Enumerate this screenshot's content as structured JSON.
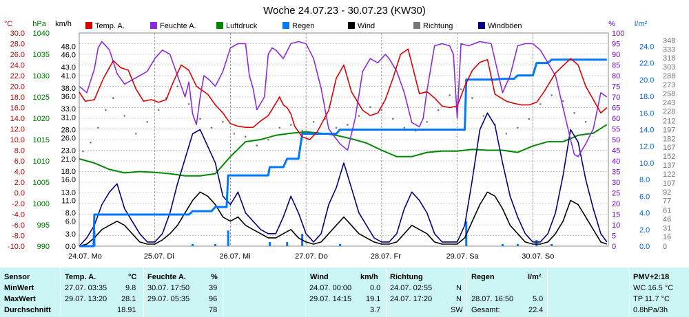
{
  "chart_data": {
    "type": "line",
    "title": "Woche 24.07.23 - 30.07.23 (KW30)",
    "axis_units": {
      "temp": "°C",
      "hpa": "hPa",
      "kmh": "km/h",
      "pct": "%",
      "lm2": "l/m²"
    },
    "axes": {
      "temp": {
        "min": -10,
        "max": 30,
        "ticks": [
          "30.0",
          "28.0",
          "26.0",
          "24.0",
          "22.0",
          "20.0",
          "18.0",
          "16.0",
          "14.0",
          "12.0",
          "10.0",
          "8.0",
          "6.0",
          "4.0",
          "2.0",
          "0.0",
          "-2.0",
          "-4.0",
          "-6.0",
          "-8.0",
          "-10.0"
        ],
        "color": "#cc0000"
      },
      "hpa": {
        "min": 990,
        "max": 1040,
        "ticks": [
          "1040",
          "1035",
          "1030",
          "1025",
          "1020",
          "1015",
          "1010",
          "1005",
          "1000",
          "995",
          "990"
        ],
        "color": "#007700"
      },
      "kmh": {
        "ticks": [
          {
            "v": 0,
            "l": "0.0"
          },
          {
            "v": 3,
            "l": "3.0"
          },
          {
            "v": 6,
            "l": "6.0"
          },
          {
            "v": 8,
            "l": "8.0"
          },
          {
            "v": 11,
            "l": "11.0"
          },
          {
            "v": 13,
            "l": "13.0"
          },
          {
            "v": 16,
            "l": "16.0"
          },
          {
            "v": 18,
            "l": "18.0"
          },
          {
            "v": 21,
            "l": "21.0"
          },
          {
            "v": 23,
            "l": "23.0"
          },
          {
            "v": 26,
            "l": "26.0"
          },
          {
            "v": 28,
            "l": "28.0"
          },
          {
            "v": 31,
            "l": "31.0"
          },
          {
            "v": 33,
            "l": "33.0"
          },
          {
            "v": 36,
            "l": "36.0"
          },
          {
            "v": 38,
            "l": "38.0"
          },
          {
            "v": 41,
            "l": "41.0"
          },
          {
            "v": 43,
            "l": "43.0"
          },
          {
            "v": 46,
            "l": "46.0"
          },
          {
            "v": 48,
            "l": "48.0"
          }
        ],
        "max": 51.2,
        "color": "#000000"
      },
      "pct": {
        "min": 0,
        "max": 100,
        "ticks": [
          "100",
          "95",
          "90",
          "85",
          "80",
          "75",
          "70",
          "65",
          "60",
          "55",
          "50",
          "45",
          "40",
          "35",
          "30",
          "25",
          "20",
          "15",
          "10",
          "5",
          "0"
        ],
        "color": "#7700cc"
      },
      "lm2": {
        "min": 0,
        "max": 25.6,
        "ticks": [
          "24.0",
          "22.0",
          "20.0",
          "18.0",
          "16.0",
          "14.0",
          "12.0",
          "10.0",
          "8.0",
          "6.0",
          "4.0",
          "2.0",
          "0.0"
        ],
        "color": "#0066cc"
      },
      "dir": {
        "max": 360,
        "ticks": [
          "348",
          "333",
          "318",
          "303",
          "288",
          "273",
          "258",
          "243",
          "228",
          "212",
          "197",
          "182",
          "167",
          "152",
          "137",
          "122",
          "107",
          "92",
          "77",
          "61",
          "46",
          "31",
          "16",
          "0"
        ],
        "color": "#777777"
      }
    },
    "x_labels": [
      "24.07. Mo",
      "25.07. Di",
      "26.07. Mi",
      "27.07. Do",
      "28.07. Fr",
      "29.07. Sa",
      "30.07. So"
    ],
    "x_range_days": [
      0,
      7
    ],
    "legend": [
      "Temp. A.",
      "Feuchte A.",
      "Luftdruck",
      "Regen",
      "Wind",
      "Richtung",
      "Windböen"
    ],
    "series": [
      {
        "name": "Temp. A.",
        "unit": "°C",
        "color": "#dd0000",
        "x": [
          0,
          0.08,
          0.2,
          0.32,
          0.45,
          0.55,
          0.65,
          0.75,
          0.85,
          0.95,
          1.05,
          1.15,
          1.25,
          1.35,
          1.45,
          1.55,
          1.7,
          1.8,
          1.9,
          2.0,
          2.1,
          2.2,
          2.3,
          2.4,
          2.5,
          2.6,
          2.65,
          2.7,
          2.75,
          2.8,
          2.85,
          2.95,
          3.05,
          3.15,
          3.3,
          3.4,
          3.5,
          3.6,
          3.75,
          3.85,
          3.95,
          4.05,
          4.15,
          4.25,
          4.35,
          4.5,
          4.6,
          4.7,
          4.8,
          4.9,
          5.0,
          5.1,
          5.2,
          5.3,
          5.4,
          5.5,
          5.65,
          5.75,
          5.85,
          5.95,
          6.05,
          6.15,
          6.3,
          6.5,
          6.6,
          6.7,
          6.8,
          6.9,
          6.98
        ],
        "y": [
          18.9,
          17.2,
          17.5,
          21.5,
          24.8,
          23.5,
          23.0,
          19.5,
          17.2,
          17.5,
          17.0,
          17.5,
          21.0,
          24.0,
          23.0,
          20.0,
          18.5,
          16.5,
          15.0,
          13.0,
          12.5,
          12.3,
          12.3,
          13.5,
          14.5,
          16.8,
          18.0,
          16.5,
          16.0,
          14.8,
          12.5,
          10.5,
          10.0,
          11.5,
          15.5,
          21.5,
          24.0,
          19.0,
          15.5,
          14.5,
          15.0,
          17.5,
          21.5,
          26.0,
          27.0,
          18.6,
          19.0,
          17.8,
          16.3,
          16.0,
          16.3,
          20.0,
          23.0,
          24.5,
          25.0,
          18.5,
          17.2,
          16.8,
          16.5,
          16.5,
          17.0,
          19.0,
          22.5,
          25.2,
          24.0,
          20.0,
          17.5,
          15.0,
          16.0
        ]
      },
      {
        "name": "Feuchte A.",
        "unit": "%",
        "color": "#8a2be2",
        "x": [
          0,
          0.1,
          0.2,
          0.25,
          0.3,
          0.4,
          0.5,
          0.6,
          0.7,
          0.8,
          0.9,
          1.0,
          1.1,
          1.2,
          1.3,
          1.4,
          1.45,
          1.5,
          1.55,
          1.6,
          1.65,
          1.72,
          1.8,
          1.9,
          2.0,
          2.1,
          2.2,
          2.25,
          2.3,
          2.35,
          2.45,
          2.5,
          2.55,
          2.6,
          2.7,
          2.8,
          2.9,
          3.0,
          3.1,
          3.2,
          3.3,
          3.45,
          3.55,
          3.65,
          3.75,
          3.85,
          3.95,
          4.05,
          4.1,
          4.2,
          4.3,
          4.4,
          4.5,
          4.55,
          4.6,
          4.7,
          4.8,
          4.9,
          4.95,
          5.0,
          5.05,
          5.15,
          5.3,
          5.45,
          5.6,
          5.7,
          5.8,
          5.9,
          6.0,
          6.1,
          6.3,
          6.5,
          6.55,
          6.6,
          6.7,
          6.8,
          6.9,
          6.98
        ],
        "y": [
          75,
          72,
          83,
          93,
          96,
          92,
          81,
          76,
          78,
          80,
          82,
          88,
          92,
          90,
          80,
          70,
          77,
          62,
          57,
          70,
          80,
          78,
          75,
          82,
          93,
          95,
          95,
          80,
          74,
          64,
          70,
          90,
          93,
          92,
          88,
          95,
          96,
          95,
          88,
          74,
          55,
          48,
          45,
          60,
          82,
          88,
          86,
          90,
          88,
          82,
          72,
          58,
          56,
          60,
          73,
          94,
          95,
          94,
          90,
          60,
          95,
          94,
          96,
          95,
          72,
          80,
          94,
          95,
          95,
          92,
          80,
          50,
          43,
          42,
          48,
          55,
          72,
          70
        ]
      },
      {
        "name": "Luftdruck",
        "unit": "hPa",
        "color": "#008800",
        "x": [
          0,
          0.2,
          0.4,
          0.6,
          0.8,
          1.0,
          1.2,
          1.4,
          1.6,
          1.8,
          2.0,
          2.2,
          2.4,
          2.6,
          2.8,
          3.0,
          3.2,
          3.4,
          3.6,
          3.8,
          4.0,
          4.2,
          4.4,
          4.6,
          4.8,
          5.0,
          5.2,
          5.4,
          5.6,
          5.8,
          6.0,
          6.2,
          6.4,
          6.6,
          6.8,
          6.98
        ],
        "y": [
          1010.5,
          1009.5,
          1008,
          1007.2,
          1007.5,
          1007.3,
          1007,
          1006.5,
          1006.5,
          1007,
          1011,
          1014.5,
          1015,
          1016,
          1016.5,
          1016.8,
          1016.5,
          1016,
          1015.2,
          1014.2,
          1012.5,
          1011,
          1011,
          1012,
          1012.3,
          1012.3,
          1012.7,
          1012.5,
          1012.5,
          1012,
          1013.5,
          1014.5,
          1014.5,
          1016,
          1016.5,
          1018.5
        ]
      },
      {
        "name": "Regen",
        "unit": "l/m²",
        "color": "#0077ff",
        "x": [
          0,
          0.19,
          0.2,
          1.45,
          1.5,
          1.75,
          1.8,
          1.95,
          1.97,
          2.5,
          2.52,
          2.7,
          2.75,
          2.9,
          2.95,
          3.4,
          3.45,
          5.1,
          5.12,
          5.5,
          5.6,
          5.75,
          5.8,
          6.0,
          6.05,
          6.2,
          6.25,
          6.98
        ],
        "y": [
          0,
          0,
          3.8,
          3.8,
          4.2,
          4.2,
          4.7,
          4.7,
          8.5,
          8.5,
          9.5,
          9.5,
          10.5,
          10.5,
          13.5,
          13.5,
          14.0,
          14.0,
          20.0,
          20.0,
          20.1,
          20.1,
          20.5,
          20.5,
          22.0,
          22.0,
          22.4,
          22.4
        ]
      },
      {
        "name": "Wind",
        "unit": "km/h",
        "color": "#000000",
        "x": [
          0,
          0.1,
          0.2,
          0.3,
          0.4,
          0.5,
          0.6,
          0.7,
          0.8,
          0.9,
          1.0,
          1.1,
          1.2,
          1.3,
          1.4,
          1.5,
          1.6,
          1.7,
          1.8,
          1.9,
          2.0,
          2.1,
          2.2,
          2.3,
          2.4,
          2.5,
          2.6,
          2.7,
          2.8,
          2.9,
          3.0,
          3.1,
          3.2,
          3.3,
          3.4,
          3.5,
          3.6,
          3.7,
          3.8,
          3.9,
          4.0,
          4.1,
          4.2,
          4.3,
          4.4,
          4.5,
          4.6,
          4.7,
          4.8,
          4.9,
          5.0,
          5.1,
          5.2,
          5.3,
          5.4,
          5.5,
          5.6,
          5.7,
          5.8,
          5.9,
          6.0,
          6.1,
          6.2,
          6.3,
          6.4,
          6.5,
          6.6,
          6.7,
          6.8,
          6.9,
          6.98
        ],
        "y": [
          0,
          0.5,
          2,
          4,
          5,
          6,
          5,
          3,
          1,
          0.5,
          0.5,
          1.5,
          3,
          5,
          8,
          11,
          13,
          12,
          10,
          7,
          6,
          7,
          5,
          4,
          3,
          2,
          2,
          3,
          4,
          2,
          1,
          0.5,
          1,
          3,
          5,
          7,
          5,
          3,
          2,
          1,
          0.5,
          0.5,
          1,
          3,
          5,
          4,
          3,
          1,
          0.5,
          0.5,
          0.5,
          2,
          6,
          10,
          13,
          12,
          9,
          5,
          3,
          1,
          0.5,
          0.5,
          1,
          3,
          6,
          11,
          10,
          7,
          4,
          1,
          0.5
        ]
      },
      {
        "name": "Windböen",
        "unit": "km/h",
        "color": "#000080",
        "x": [
          0,
          0.1,
          0.2,
          0.3,
          0.4,
          0.5,
          0.6,
          0.7,
          0.8,
          0.9,
          1.0,
          1.1,
          1.2,
          1.3,
          1.4,
          1.5,
          1.6,
          1.7,
          1.8,
          1.9,
          2.0,
          2.1,
          2.2,
          2.3,
          2.4,
          2.5,
          2.6,
          2.7,
          2.8,
          2.9,
          3.0,
          3.1,
          3.2,
          3.3,
          3.4,
          3.5,
          3.6,
          3.7,
          3.8,
          3.9,
          4.0,
          4.1,
          4.2,
          4.3,
          4.4,
          4.5,
          4.6,
          4.7,
          4.8,
          4.9,
          5.0,
          5.1,
          5.2,
          5.3,
          5.4,
          5.5,
          5.6,
          5.7,
          5.8,
          5.9,
          6.0,
          6.1,
          6.2,
          6.3,
          6.4,
          6.5,
          6.6,
          6.7,
          6.8,
          6.9,
          6.98
        ],
        "y": [
          0,
          2,
          5,
          10,
          13,
          15,
          9,
          6,
          3,
          1,
          1,
          3,
          8,
          15,
          21,
          27,
          28,
          24,
          20,
          12,
          10,
          13,
          8,
          6,
          4,
          3,
          3,
          7,
          12,
          8,
          3,
          1,
          3,
          10,
          14,
          20,
          14,
          8,
          5,
          2,
          1,
          1,
          3,
          9,
          13,
          11,
          8,
          3,
          1,
          1,
          1,
          5,
          16,
          28,
          32,
          29,
          20,
          12,
          7,
          3,
          1,
          1,
          3,
          8,
          17,
          28,
          25,
          16,
          9,
          3,
          1
        ]
      },
      {
        "name": "Richtung",
        "unit": "°",
        "color": "#777777",
        "type": "scatter",
        "x": [
          0.05,
          0.15,
          0.25,
          0.35,
          0.45,
          0.6,
          0.75,
          0.9,
          1.05,
          1.15,
          1.3,
          1.45,
          1.6,
          1.75,
          1.9,
          2.05,
          2.2,
          2.35,
          2.5,
          2.65,
          2.8,
          2.95,
          3.1,
          3.25,
          3.4,
          3.55,
          3.7,
          3.85,
          4.0,
          4.15,
          4.3,
          4.45,
          4.6,
          4.75,
          4.9,
          5.05,
          5.2,
          5.35,
          5.5,
          5.65,
          5.8,
          5.95,
          6.1,
          6.25,
          6.4,
          6.55,
          6.7,
          6.85
        ],
        "y": [
          160,
          175,
          200,
          230,
          250,
          220,
          190,
          210,
          230,
          250,
          270,
          240,
          215,
          200,
          210,
          190,
          185,
          170,
          180,
          200,
          205,
          195,
          210,
          215,
          200,
          205,
          220,
          235,
          230,
          215,
          200,
          195,
          210,
          230,
          255,
          265,
          250,
          220,
          205,
          190,
          200,
          215,
          240,
          255,
          245,
          225,
          210,
          195
        ]
      }
    ],
    "marker_text": "PMV+2:18"
  },
  "table": {
    "sensor_label": "Sensor",
    "min_label": "MinWert",
    "max_label": "MaxWert",
    "avg_label": "Durchschnitt",
    "temp": {
      "title": "Temp. A.",
      "unit": "°C",
      "min_time": "27.07.  03:35",
      "min_val": "9.8",
      "max_time": "29.07.  13:20",
      "max_val": "28.1",
      "avg_val": "18.91"
    },
    "hum": {
      "title": "Feuchte A.",
      "unit": "%",
      "min_time": "30.07.  17:50",
      "min_val": "39",
      "max_time": "29.07.  05:35",
      "max_val": "96",
      "avg_val": "78"
    },
    "wind": {
      "title": "Wind",
      "unit": "km/h",
      "min_time": "24.07.  00:00",
      "min_val": "0.0",
      "max_time": "29.07.  14:15",
      "max_val": "19.1",
      "avg_val": "3.7"
    },
    "dir": {
      "title": "Richtung",
      "min_time": "24.07.  02:55",
      "min_val": "N",
      "max_time": "24.07.  17:20",
      "max_val": "N",
      "avg_val": "SW"
    },
    "rain": {
      "title": "Regen",
      "unit": "l/m²",
      "max_time": "28.07.  16:50",
      "max_val": "5.0",
      "total_label": "Gesamt:",
      "total_val": "22.4"
    },
    "extra": {
      "l1": "PMV+2:18",
      "l2": "WC 16.5 °C",
      "l3": "TP 11.7 °C",
      "l4": "0.8hPa/3h"
    }
  }
}
